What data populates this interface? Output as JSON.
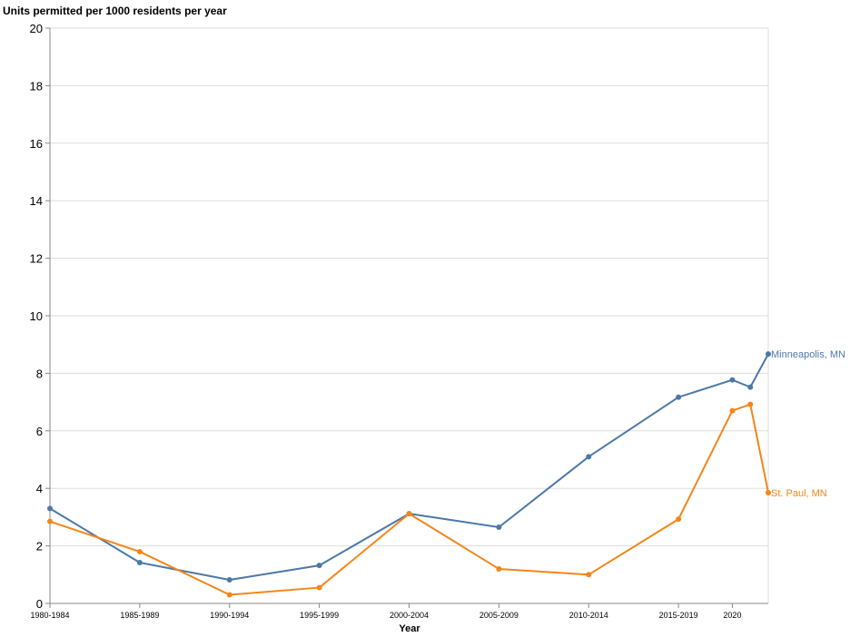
{
  "chart_data": {
    "type": "line",
    "ylabel": "Units permitted per 1000 residents per year",
    "xlabel": "Year",
    "ylim": [
      0,
      20
    ],
    "yticks": [
      0,
      2,
      4,
      6,
      8,
      10,
      12,
      14,
      16,
      18,
      20
    ],
    "grid": true,
    "x": [
      0,
      5,
      10,
      15,
      20,
      25,
      30,
      35,
      38,
      39,
      40
    ],
    "x_tick_labels": [
      {
        "x": 0,
        "label": "1980-1984"
      },
      {
        "x": 5,
        "label": "1985-1989"
      },
      {
        "x": 10,
        "label": "1990-1994"
      },
      {
        "x": 15,
        "label": "1995-1999"
      },
      {
        "x": 20,
        "label": "2000-2004"
      },
      {
        "x": 25,
        "label": "2005-2009"
      },
      {
        "x": 30,
        "label": "2010-2014"
      },
      {
        "x": 35,
        "label": "2015-2019"
      },
      {
        "x": 38,
        "label": "2020"
      }
    ],
    "series": [
      {
        "name": "Minneapolis, MN",
        "color": "#4c78a8",
        "values": [
          3.3,
          1.42,
          0.82,
          1.32,
          3.12,
          2.65,
          5.1,
          7.17,
          7.77,
          7.52,
          8.67
        ]
      },
      {
        "name": "St. Paul, MN",
        "color": "#f58518",
        "values": [
          2.85,
          1.8,
          0.3,
          0.55,
          3.12,
          1.2,
          1.0,
          2.93,
          6.7,
          6.92,
          3.85
        ]
      }
    ]
  }
}
